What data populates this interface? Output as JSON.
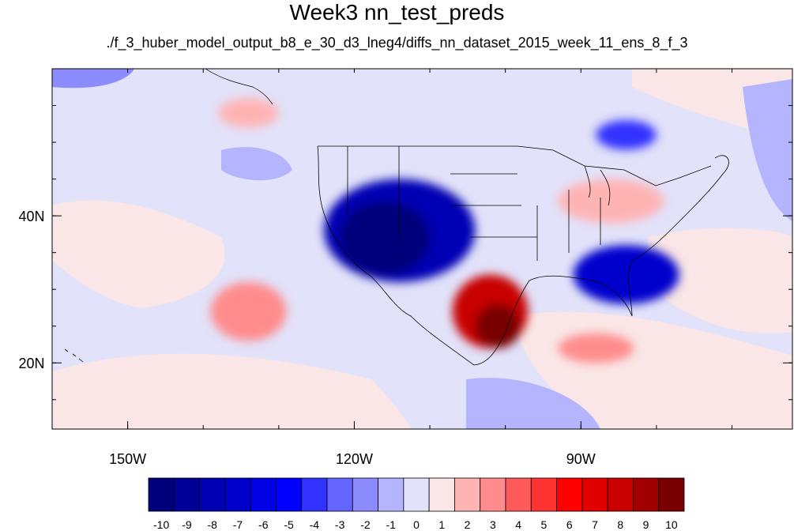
{
  "title": "Week3 nn_test_preds",
  "subtitle": "./f_3_huber_model_output_b8_e_30_d3_lneg4/diffs_nn_dataset_2015_week_11_ens_8_f_3",
  "lon_range": [
    -160,
    -62
  ],
  "lat_range": [
    11,
    60
  ],
  "lon_ticks": [
    {
      "value": -150,
      "label": "150W"
    },
    {
      "value": -120,
      "label": "120W"
    },
    {
      "value": -90,
      "label": "90W"
    }
  ],
  "lat_ticks": [
    {
      "value": 40,
      "label": "40N"
    },
    {
      "value": 20,
      "label": "20N"
    }
  ],
  "colorbar": {
    "labels": [
      "-10",
      "-9",
      "-8",
      "-7",
      "-6",
      "-5",
      "-4",
      "-3",
      "-2",
      "-1",
      "0",
      "1",
      "2",
      "3",
      "4",
      "5",
      "6",
      "7",
      "8",
      "9",
      "10"
    ],
    "colors": [
      "#00007a",
      "#000096",
      "#0000b4",
      "#0000cd",
      "#0000e6",
      "#0000ff",
      "#3232ff",
      "#6464ff",
      "#8c8cff",
      "#b4b4ff",
      "#e2e2fa",
      "#fae6e6",
      "#ffb4b4",
      "#ff8c8c",
      "#ff5a5a",
      "#ff3232",
      "#ff0000",
      "#e00000",
      "#c80000",
      "#a00000",
      "#780000"
    ]
  },
  "anomaly_regions": [
    {
      "name": "western-us-cold",
      "value": -8,
      "lon": -114,
      "lat": 38,
      "rlon": 10,
      "rlat": 7
    },
    {
      "name": "western-us-core",
      "value": -10,
      "lon": -116,
      "lat": 37,
      "rlon": 6,
      "rlat": 5
    },
    {
      "name": "texas-mexico-warm",
      "value": 8,
      "lon": -102,
      "lat": 27,
      "rlon": 5,
      "rlat": 5
    },
    {
      "name": "texas-mexico-core",
      "value": 10,
      "lon": -101,
      "lat": 25,
      "rlon": 3,
      "rlat": 3
    },
    {
      "name": "southeast-cold",
      "value": -7,
      "lon": -84,
      "lat": 32,
      "rlon": 7,
      "rlat": 4
    },
    {
      "name": "great-lakes-warm",
      "value": 2,
      "lon": -86,
      "lat": 42,
      "rlon": 7,
      "rlat": 3
    },
    {
      "name": "east-pacific-warm",
      "value": 3,
      "lon": -134,
      "lat": 27,
      "rlon": 5,
      "rlat": 4
    },
    {
      "name": "gulf-warm",
      "value": 3,
      "lon": -88,
      "lat": 22,
      "rlon": 5,
      "rlat": 2
    },
    {
      "name": "canada-cold",
      "value": -4,
      "lon": -84,
      "lat": 51,
      "rlon": 4,
      "rlat": 2
    },
    {
      "name": "alaska-warm",
      "value": 2,
      "lon": -134,
      "lat": 54,
      "rlon": 4,
      "rlat": 2
    }
  ]
}
